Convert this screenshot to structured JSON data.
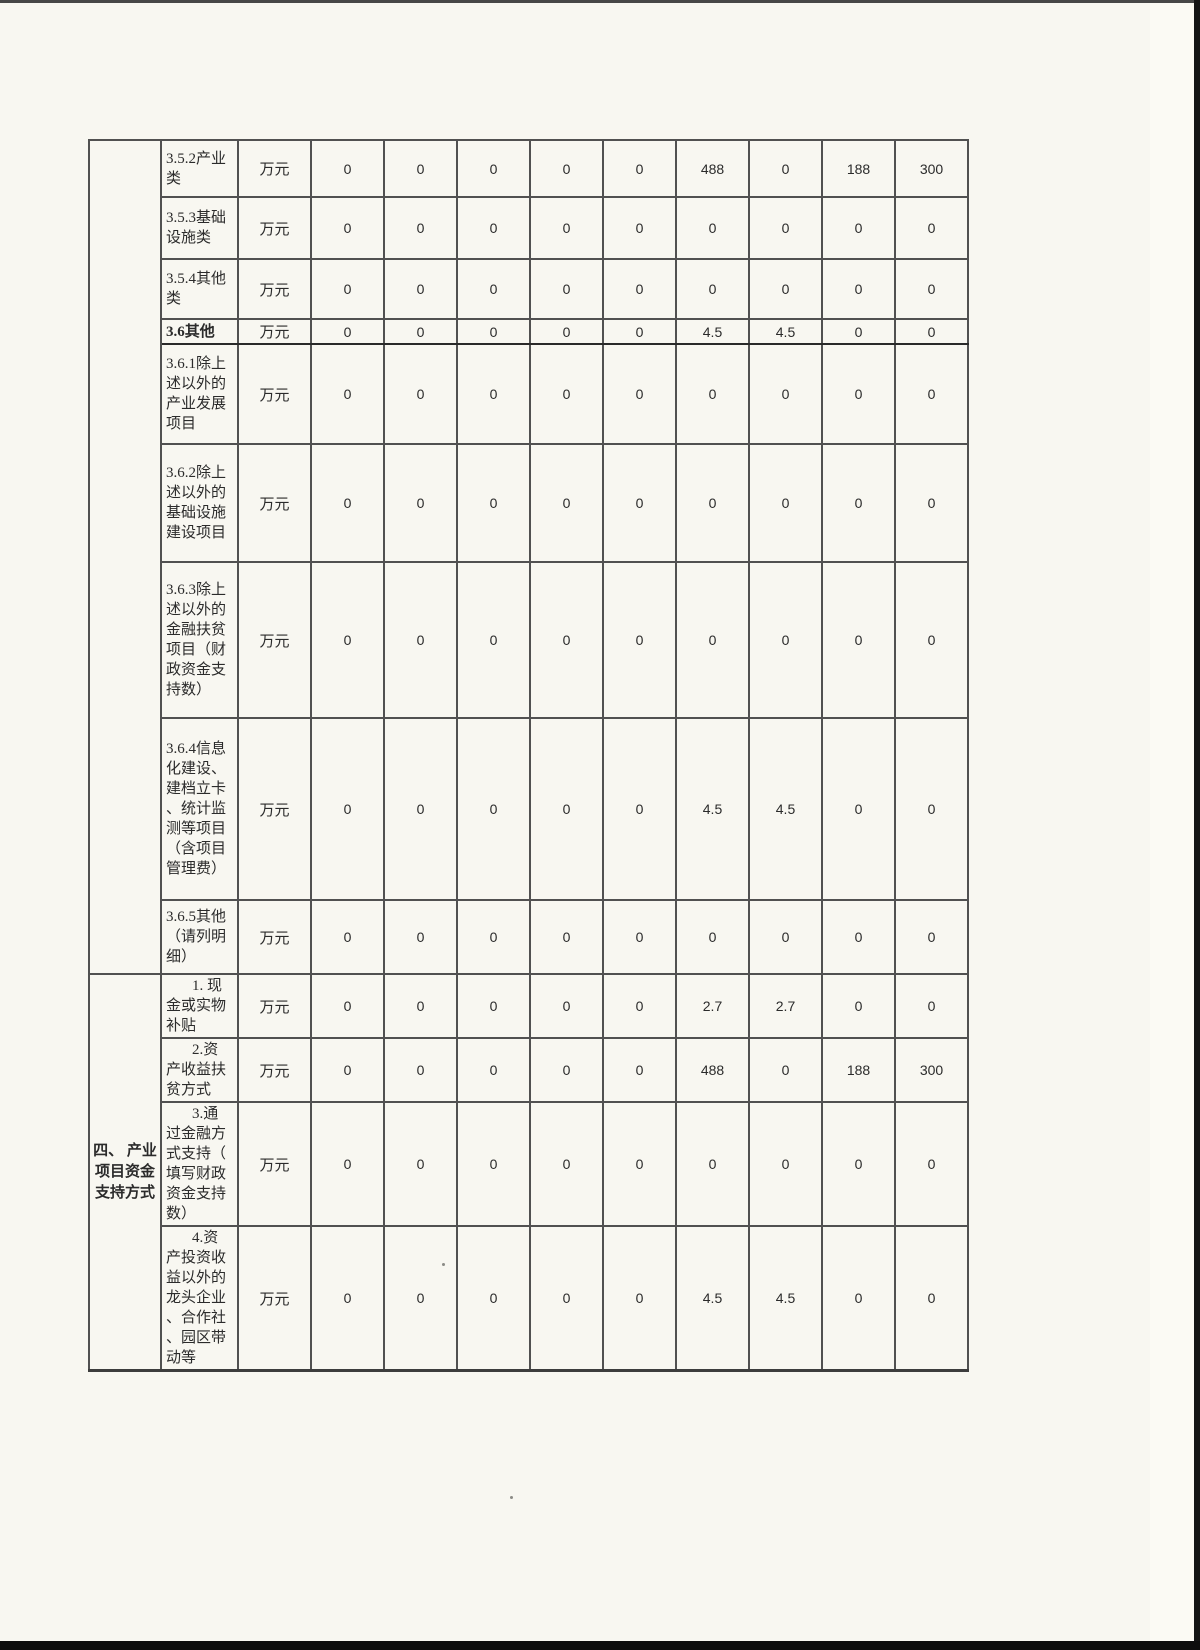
{
  "page": {
    "background_color": "#f8f7f1",
    "scan_edge_color": "#151515"
  },
  "table": {
    "unit_label": "万元",
    "groups": [
      {
        "label": "",
        "rowspan": 9
      },
      {
        "label": "四、 产业项目资金支持方式",
        "rowspan": 4
      }
    ],
    "rows": [
      {
        "label": "3.5.2产业类",
        "values": [
          "0",
          "0",
          "0",
          "0",
          "0",
          "488",
          "0",
          "188",
          "300"
        ]
      },
      {
        "label": "3.5.3基础设施类",
        "values": [
          "0",
          "0",
          "0",
          "0",
          "0",
          "0",
          "0",
          "0",
          "0"
        ]
      },
      {
        "label": "3.5.4其他类",
        "values": [
          "0",
          "0",
          "0",
          "0",
          "0",
          "0",
          "0",
          "0",
          "0"
        ]
      },
      {
        "label": "3.6其他",
        "bold": true,
        "values": [
          "0",
          "0",
          "0",
          "0",
          "0",
          "4.5",
          "4.5",
          "0",
          "0"
        ]
      },
      {
        "label": "3.6.1除上述以外的产业发展项目",
        "values": [
          "0",
          "0",
          "0",
          "0",
          "0",
          "0",
          "0",
          "0",
          "0"
        ]
      },
      {
        "label": "3.6.2除上述以外的基础设施建设项目",
        "values": [
          "0",
          "0",
          "0",
          "0",
          "0",
          "0",
          "0",
          "0",
          "0"
        ]
      },
      {
        "label": "3.6.3除上述以外的金融扶贫项目（财政资金支持数）",
        "values": [
          "0",
          "0",
          "0",
          "0",
          "0",
          "0",
          "0",
          "0",
          "0"
        ]
      },
      {
        "label": "3.6.4信息化建设、建档立卡、统计监测等项目（含项目管理费）",
        "values": [
          "0",
          "0",
          "0",
          "0",
          "0",
          "4.5",
          "4.5",
          "0",
          "0"
        ]
      },
      {
        "label": "3.6.5其他（请列明细）",
        "values": [
          "0",
          "0",
          "0",
          "0",
          "0",
          "0",
          "0",
          "0",
          "0"
        ]
      },
      {
        "label": "1. 现金或实物补贴",
        "indent": true,
        "values": [
          "0",
          "0",
          "0",
          "0",
          "0",
          "2.7",
          "2.7",
          "0",
          "0"
        ]
      },
      {
        "label": "2.资产收益扶贫方式",
        "indent": true,
        "values": [
          "0",
          "0",
          "0",
          "0",
          "0",
          "488",
          "0",
          "188",
          "300"
        ]
      },
      {
        "label": "3.通过金融方式支持（填写财政资金支持数）",
        "indent": true,
        "values": [
          "0",
          "0",
          "0",
          "0",
          "0",
          "0",
          "0",
          "0",
          "0"
        ]
      },
      {
        "label": "4.资产投资收益以外的龙头企业、合作社、园区带动等",
        "indent": true,
        "values": [
          "0",
          "0",
          "0",
          "0",
          "0",
          "4.5",
          "4.5",
          "0",
          "0"
        ]
      }
    ]
  }
}
